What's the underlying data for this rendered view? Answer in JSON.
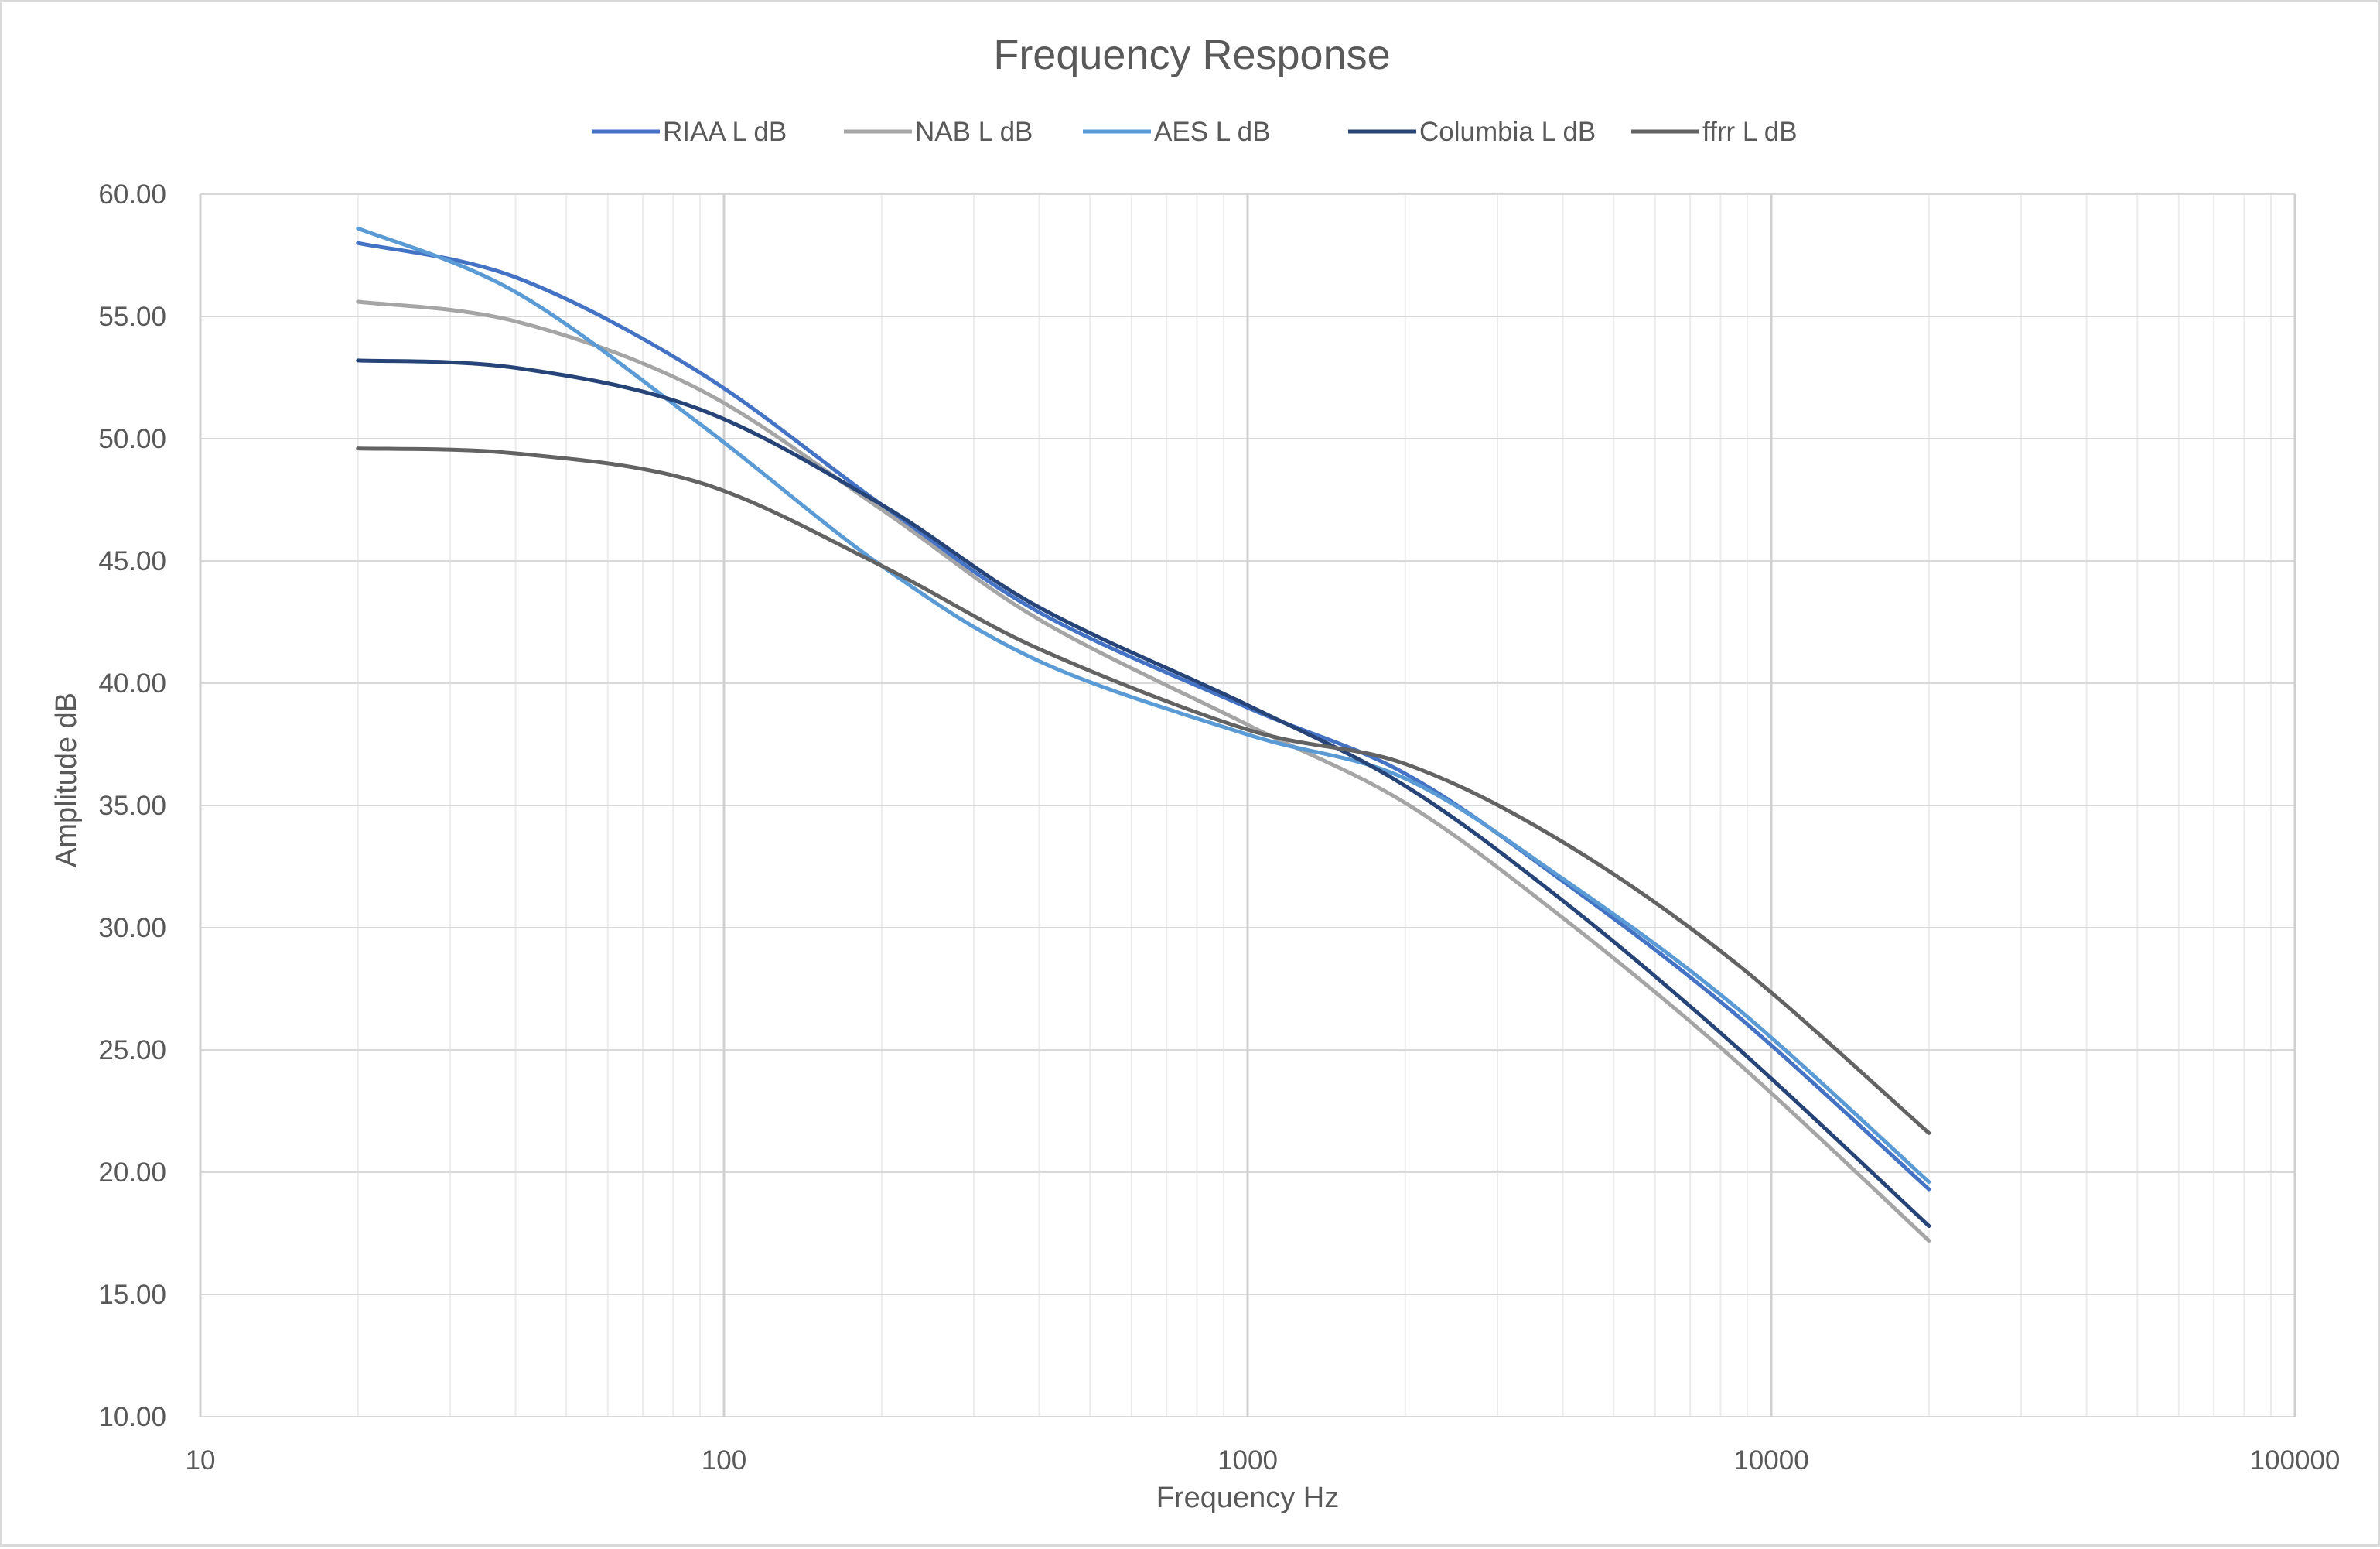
{
  "chart_data": {
    "type": "line",
    "title": "Frequency Response",
    "xlabel": "Frequency Hz",
    "ylabel": "Amplitude dB",
    "xscale": "log",
    "xlim": [
      10,
      100000
    ],
    "ylim": [
      10,
      60
    ],
    "grid": true,
    "legend_position": "top",
    "x_tick_labels": [
      "10",
      "100",
      "1000",
      "10000",
      "100000"
    ],
    "y_tick_labels": [
      "10.00",
      "15.00",
      "20.00",
      "25.00",
      "30.00",
      "35.00",
      "40.00",
      "45.00",
      "50.00",
      "55.00",
      "60.00"
    ],
    "x": [
      20,
      40,
      90,
      200,
      400,
      1000,
      2000,
      4000,
      8500,
      20000
    ],
    "series": [
      {
        "name": "RIAA L dB",
        "color": "#4472c4",
        "values": [
          58.0,
          56.6,
          52.7,
          47.3,
          42.9,
          39.0,
          36.3,
          31.9,
          26.5,
          19.3
        ]
      },
      {
        "name": "NAB L dB",
        "color": "#a5a5a5",
        "values": [
          55.6,
          54.8,
          52.0,
          47.1,
          42.6,
          38.3,
          35.1,
          30.4,
          24.6,
          17.2
        ]
      },
      {
        "name": "AES L dB",
        "color": "#5b9bd5",
        "values": [
          58.6,
          56.0,
          50.6,
          44.8,
          40.9,
          37.9,
          36.1,
          32.0,
          26.8,
          19.6
        ]
      },
      {
        "name": "Columbia L dB",
        "color": "#264478",
        "values": [
          53.2,
          52.9,
          51.2,
          47.3,
          43.1,
          39.1,
          35.8,
          31.1,
          25.2,
          17.8
        ]
      },
      {
        "name": "ffrr L dB",
        "color": "#636363",
        "values": [
          49.6,
          49.4,
          48.2,
          44.8,
          41.4,
          38.1,
          36.7,
          33.5,
          28.6,
          21.6
        ]
      }
    ]
  }
}
